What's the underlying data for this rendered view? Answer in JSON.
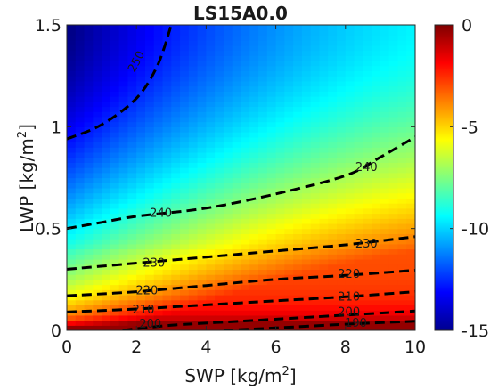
{
  "chart_data": {
    "type": "heatmap",
    "title": "LS15A0.0",
    "xlabel": {
      "base": "SWP [kg/m",
      "sup": "2",
      "end": "]"
    },
    "ylabel": {
      "base": "LWP [kg/m",
      "sup": "2",
      "end": "]"
    },
    "xlim": [
      0,
      10
    ],
    "ylim": [
      0,
      1.5
    ],
    "xticks": [
      "0",
      "2",
      "4",
      "6",
      "8",
      "10"
    ],
    "xtick_values": [
      0,
      2,
      4,
      6,
      8,
      10
    ],
    "yticks": [
      "0",
      "0.5",
      "1",
      "1.5"
    ],
    "ytick_values": [
      0,
      0.5,
      1,
      1.5
    ],
    "colorbar": {
      "range": [
        -15,
        0
      ],
      "colormap": "jet",
      "ticks": [
        "0",
        "-5",
        "-10",
        "-15"
      ],
      "tick_values": [
        0,
        -5,
        -10,
        -15
      ]
    },
    "contours": [
      {
        "level": 250,
        "label": "250",
        "label_at": [
          2.0,
          1.32
        ],
        "points": [
          [
            0,
            0.94
          ],
          [
            1,
            1.01
          ],
          [
            2,
            1.14
          ],
          [
            2.6,
            1.3
          ],
          [
            3.0,
            1.5
          ]
        ]
      },
      {
        "level": 240,
        "label": "240",
        "label_at": [
          2.7,
          0.575
        ],
        "points": [
          [
            0,
            0.5
          ],
          [
            1,
            0.53
          ],
          [
            2,
            0.56
          ],
          [
            4,
            0.6
          ],
          [
            6,
            0.67
          ],
          [
            8,
            0.76
          ],
          [
            9,
            0.85
          ],
          [
            10,
            0.95
          ]
        ]
      },
      {
        "level": 240,
        "label": "240",
        "label_at": [
          8.6,
          0.8
        ],
        "label_only": true
      },
      {
        "level": 230,
        "label": "230",
        "label_at": [
          2.5,
          0.33
        ],
        "points": [
          [
            0,
            0.3
          ],
          [
            2,
            0.33
          ],
          [
            4,
            0.36
          ],
          [
            6,
            0.39
          ],
          [
            8,
            0.42
          ],
          [
            10,
            0.46
          ]
        ]
      },
      {
        "level": 230,
        "label": "230",
        "label_at": [
          8.6,
          0.425
        ],
        "label_only": true
      },
      {
        "level": 220,
        "label": "220",
        "label_at": [
          2.3,
          0.195
        ],
        "points": [
          [
            0,
            0.17
          ],
          [
            2,
            0.19
          ],
          [
            4,
            0.22
          ],
          [
            6,
            0.25
          ],
          [
            8,
            0.27
          ],
          [
            10,
            0.295
          ]
        ]
      },
      {
        "level": 220,
        "label": "220",
        "label_at": [
          8.1,
          0.275
        ],
        "label_only": true
      },
      {
        "level": 210,
        "label": "210",
        "label_at": [
          2.2,
          0.1
        ],
        "points": [
          [
            0,
            0.09
          ],
          [
            2,
            0.105
          ],
          [
            4,
            0.125
          ],
          [
            6,
            0.145
          ],
          [
            8,
            0.165
          ],
          [
            10,
            0.19
          ]
        ]
      },
      {
        "level": 210,
        "label": "210",
        "label_at": [
          8.1,
          0.165
        ],
        "label_only": true
      },
      {
        "level": 200,
        "label": "200",
        "label_at": [
          2.4,
          0.03
        ],
        "points": [
          [
            1.6,
            0.0
          ],
          [
            3,
            0.025
          ],
          [
            5,
            0.045
          ],
          [
            7,
            0.065
          ],
          [
            8.5,
            0.08
          ],
          [
            10,
            0.095
          ]
        ]
      },
      {
        "level": 200,
        "label": "200",
        "label_at": [
          8.1,
          0.09
        ],
        "label_only": true
      },
      {
        "level": 190,
        "label": "190",
        "label_at": [
          8.3,
          0.035
        ],
        "points": [
          [
            4.5,
            0.0
          ],
          [
            6,
            0.012
          ],
          [
            8,
            0.03
          ],
          [
            10,
            0.045
          ]
        ]
      }
    ]
  }
}
